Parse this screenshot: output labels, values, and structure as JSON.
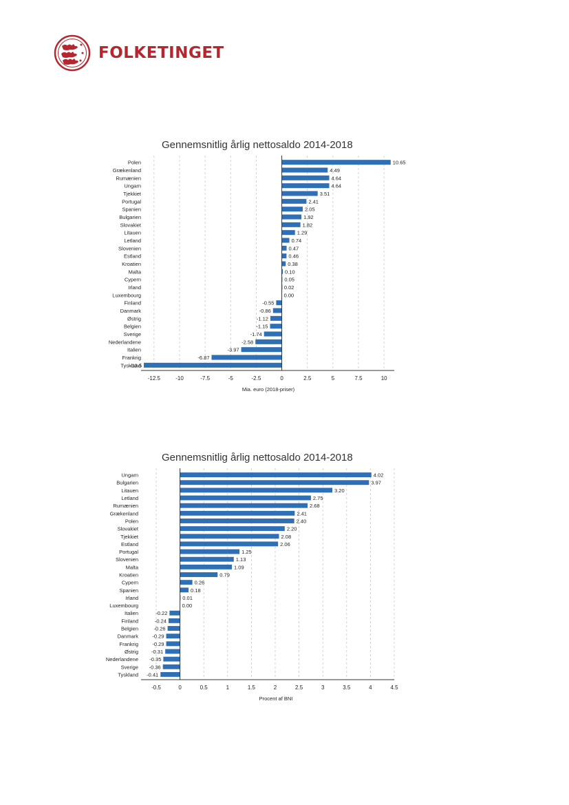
{
  "header": {
    "org_name": "FOLKETINGET",
    "brand_color": "#b5262e"
  },
  "bar_color": "#2f6fb5",
  "chart_data": [
    {
      "type": "bar",
      "orientation": "horizontal",
      "title": "Gennemsnitlig årlig nettosaldo 2014-2018",
      "xlabel": "Mia. euro (2018-priser)",
      "ylabel": "",
      "xlim": [
        -13.5,
        11
      ],
      "xticks": [
        -12.5,
        -10,
        -7.5,
        -5,
        -2.5,
        0,
        2.5,
        5,
        7.5,
        10
      ],
      "xtick_labels": [
        "-12.5",
        "-10",
        "-7.5",
        "-5",
        "-2.5",
        "0",
        "2.5",
        "5",
        "7.5",
        "10"
      ],
      "grid": "vertical dashed",
      "categories": [
        "Polen",
        "Grækenland",
        "Rumænien",
        "Ungarn",
        "Tjekkiet",
        "Portugal",
        "Spanien",
        "Bulgarien",
        "Slovakiet",
        "Litauen",
        "Letland",
        "Slovenien",
        "Estland",
        "Kroatien",
        "Malta",
        "Cypern",
        "Irland",
        "Luxembourg",
        "Finland",
        "Danmark",
        "Østrig",
        "Belgien",
        "Sverige",
        "Nederlandene",
        "Italien",
        "Frankrig",
        "Tyskland"
      ],
      "values": [
        10.65,
        4.49,
        4.64,
        4.64,
        3.51,
        2.41,
        2.05,
        1.92,
        1.82,
        1.29,
        0.74,
        0.47,
        0.46,
        0.38,
        0.1,
        0.05,
        0.02,
        0.0,
        -0.55,
        -0.86,
        -1.12,
        -1.15,
        -1.74,
        -2.58,
        -3.97,
        -6.87,
        -13.5
      ],
      "value_labels": [
        "10.65",
        "4.49",
        "4.64",
        "4.64",
        "3.51",
        "2.41",
        "2.05",
        "1.92",
        "1.82",
        "1.29",
        "0.74",
        "0.47",
        "0.46",
        "0.38",
        "0.10",
        "0.05",
        "0.02",
        "0.00",
        "-0.55",
        "-0.86",
        "-1.12",
        "-1.15",
        "-1.74",
        "-2.58",
        "-3.97",
        "-6.87",
        "-13.5"
      ]
    },
    {
      "type": "bar",
      "orientation": "horizontal",
      "title": "Gennemsnitlig årlig nettosaldo 2014-2018",
      "xlabel": "Procent af BNI",
      "ylabel": "",
      "xlim": [
        -0.5,
        4.5
      ],
      "xticks": [
        -0.5,
        0,
        0.5,
        1,
        1.5,
        2,
        2.5,
        3,
        3.5,
        4,
        4.5
      ],
      "xtick_labels": [
        "-0.5",
        "0",
        "0.5",
        "1",
        "1.5",
        "2",
        "2.5",
        "3",
        "3.5",
        "4",
        "4.5"
      ],
      "grid": "vertical dashed",
      "categories": [
        "Ungarn",
        "Bulgarien",
        "Litauen",
        "Letland",
        "Rumænien",
        "Grækenland",
        "Polen",
        "Slovakiet",
        "Tjekkiet",
        "Estland",
        "Portugal",
        "Slovenien",
        "Malta",
        "Kroatien",
        "Cypern",
        "Spanien",
        "Irland",
        "Luxembourg",
        "Italien",
        "Finland",
        "Belgien",
        "Danmark",
        "Frankrig",
        "Østrig",
        "Nederlandene",
        "Sverige",
        "Tyskland"
      ],
      "values": [
        4.02,
        3.97,
        3.2,
        2.75,
        2.68,
        2.41,
        2.4,
        2.2,
        2.08,
        2.06,
        1.25,
        1.13,
        1.09,
        0.79,
        0.26,
        0.18,
        0.01,
        0.0,
        -0.22,
        -0.24,
        -0.26,
        -0.29,
        -0.29,
        -0.31,
        -0.35,
        -0.36,
        -0.41
      ],
      "value_labels": [
        "4.02",
        "3.97",
        "3.20",
        "2.75",
        "2.68",
        "2.41",
        "2.40",
        "2.20",
        "2.08",
        "2.06",
        "1.25",
        "1.13",
        "1.09",
        "0.79",
        "0.26",
        "0.18",
        "0.01",
        "0.00",
        "-0.22",
        "-0.24",
        "-0.26",
        "-0.29",
        "-0.29",
        "-0.31",
        "-0.35",
        "-0.36",
        "-0.41"
      ]
    }
  ]
}
